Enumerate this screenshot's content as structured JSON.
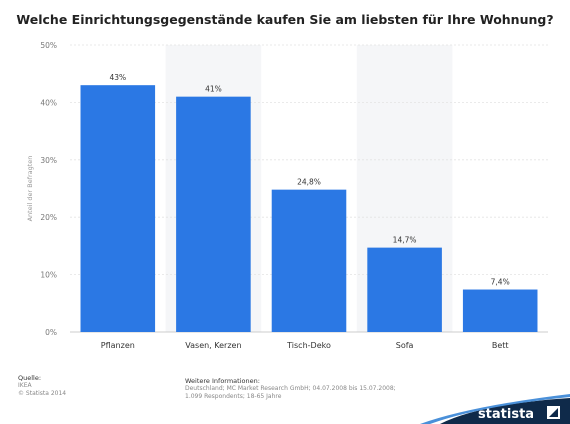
{
  "chart_data": {
    "type": "bar",
    "title": "Welche Einrichtungsgegenstände kaufen Sie am liebsten für Ihre Wohnung?",
    "ylabel": "Anteil der Befragten",
    "xlabel": "",
    "categories": [
      "Pflanzen",
      "Vasen, Kerzen",
      "Tisch-Deko",
      "Sofa",
      "Bett"
    ],
    "values": [
      43,
      41,
      24.8,
      14.7,
      7.4
    ],
    "data_labels": [
      "43%",
      "41%",
      "24,8%",
      "14,7%",
      "7,4%"
    ],
    "ylim": [
      0,
      50
    ],
    "yticks": [
      "0%",
      "10%",
      "20%",
      "30%",
      "40%",
      "50%"
    ],
    "grid": true,
    "bar_color": "#2b78e4"
  },
  "footer": {
    "source_head": "Quelle:",
    "source_lines": [
      "IKEA",
      "© Statista 2014"
    ],
    "info_head": "Weitere Informationen:",
    "info_lines": [
      "Deutschland; MC Market Research GmbH; 04.07.2008 bis 15.07.2008;",
      "1.099 Respondents; 18-65 Jahre"
    ]
  },
  "brand": {
    "name": "statista",
    "color": "#0f2a4a"
  }
}
